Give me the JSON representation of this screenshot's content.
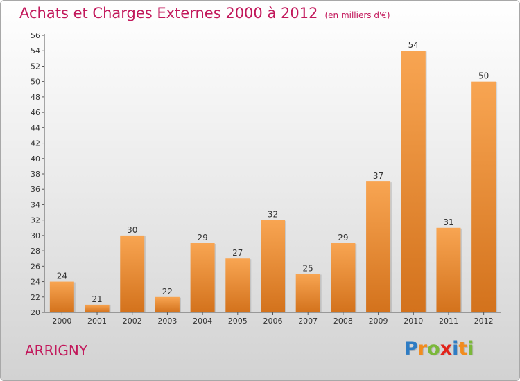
{
  "header": {
    "title": "Achats et Charges Externes 2000 à 2012",
    "unit": "(en milliers d'€)"
  },
  "footer": {
    "commune": "ARRIGNY",
    "logo_letters": [
      {
        "char": "P",
        "color": "#2e7cc4"
      },
      {
        "char": "r",
        "color": "#f28c1e"
      },
      {
        "char": "o",
        "color": "#7bb83a"
      },
      {
        "char": "x",
        "color": "#e2231a"
      },
      {
        "char": "i",
        "color": "#2e7cc4"
      },
      {
        "char": "t",
        "color": "#f28c1e"
      },
      {
        "char": "i",
        "color": "#7bb83a"
      }
    ]
  },
  "chart_data": {
    "type": "bar",
    "title": "Achats et Charges Externes 2000 à 2012",
    "subtitle": "(en milliers d'€)",
    "categories": [
      "2000",
      "2001",
      "2002",
      "2003",
      "2004",
      "2005",
      "2006",
      "2007",
      "2008",
      "2009",
      "2010",
      "2011",
      "2012"
    ],
    "values": [
      24,
      21,
      30,
      22,
      29,
      27,
      32,
      25,
      29,
      37,
      54,
      31,
      50
    ],
    "ylim": [
      20,
      56
    ],
    "ytick_step": 2,
    "grid": false,
    "bar_color_light": "#f8a552",
    "bar_color_dark": "#d3721c",
    "axis_color": "#555555"
  }
}
